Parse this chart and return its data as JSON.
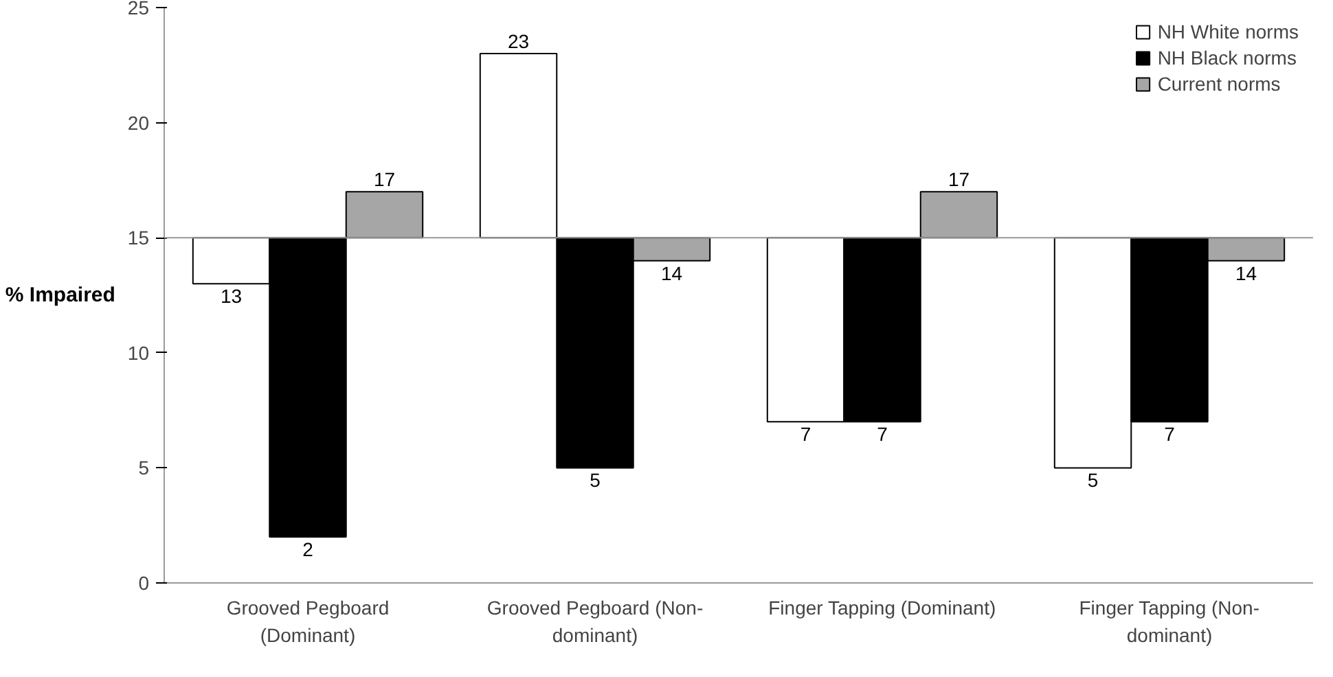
{
  "chart_data": {
    "type": "bar",
    "ylabel": "% Impaired",
    "categories": [
      "Grooved Pegboard\n(Dominant)",
      "Grooved Pegboard (Non-\ndominant)",
      "Finger Tapping (Dominant)",
      "Finger Tapping (Non-\ndominant)"
    ],
    "series": [
      {
        "name": "NH White norms",
        "color": "#ffffff",
        "base": [
          15,
          15,
          15,
          15
        ],
        "values": [
          -2,
          8,
          -8,
          -10
        ],
        "value_labels": [
          "13",
          "23",
          "7",
          "5"
        ]
      },
      {
        "name": "NH Black norms",
        "color": "#000000",
        "base": [
          15,
          15,
          15,
          15
        ],
        "values": [
          -13,
          -10,
          -8,
          -8
        ],
        "value_labels": [
          "2",
          "5",
          "7",
          "7"
        ]
      },
      {
        "name": "Current norms",
        "color": "#a6a6a6",
        "base": [
          15,
          15,
          15,
          15
        ],
        "values": [
          2,
          -1,
          2,
          -1
        ],
        "value_labels": [
          "17",
          "14",
          "17",
          "14"
        ]
      }
    ],
    "ylim": [
      0,
      25
    ],
    "yticks": [
      0,
      5,
      10,
      15,
      20,
      25
    ],
    "ref_lines": [
      {
        "axis": "y",
        "value": 15
      }
    ],
    "legend": "top right"
  }
}
